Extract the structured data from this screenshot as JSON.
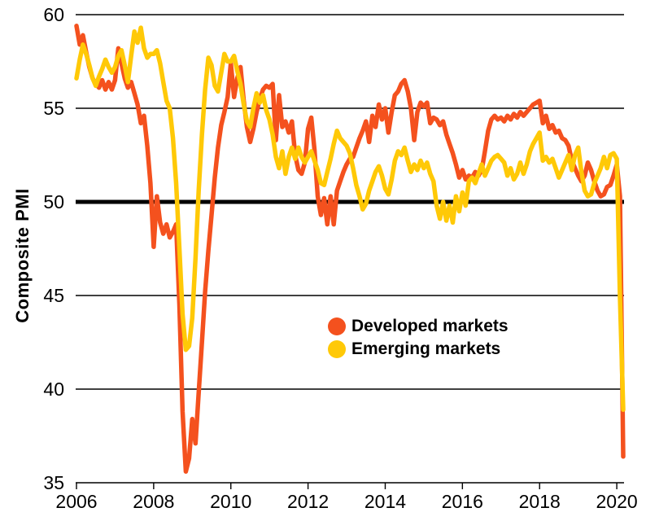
{
  "chart_data": {
    "type": "line",
    "title": "",
    "ylabel": "Composite PMI",
    "x_unit": "month",
    "x_start": "2006-01",
    "x_end": "2020-03",
    "x_range": [
      2006.0,
      2020.1667
    ],
    "y_range": [
      35,
      60
    ],
    "grid": "horizontal",
    "reference_line": 50,
    "legend_position": "center-right, inside plot",
    "x_axis": {
      "ticks": [
        {
          "value": 2006,
          "label": "2006"
        },
        {
          "value": 2008,
          "label": "2008"
        },
        {
          "value": 2010,
          "label": "2010"
        },
        {
          "value": 2012,
          "label": "2012"
        },
        {
          "value": 2014,
          "label": "2014"
        },
        {
          "value": 2016,
          "label": "2016"
        },
        {
          "value": 2018,
          "label": "2018"
        },
        {
          "value": 2020,
          "label": "2020"
        }
      ]
    },
    "y_axis": {
      "ticks": [
        {
          "value": 60,
          "label": "60",
          "emphasis": false
        },
        {
          "value": 55,
          "label": "55",
          "emphasis": false
        },
        {
          "value": 50,
          "label": "50",
          "emphasis": true
        },
        {
          "value": 45,
          "label": "45",
          "emphasis": false
        },
        {
          "value": 40,
          "label": "40",
          "emphasis": false
        },
        {
          "value": 35,
          "label": "35",
          "emphasis": false
        }
      ]
    },
    "series": [
      {
        "id": "developed",
        "name": "Developed markets",
        "color": "#F4511E",
        "start": "2006-01",
        "values": [
          59.4,
          58.4,
          58.9,
          58.0,
          57.2,
          56.6,
          56.3,
          56.1,
          56.5,
          56.0,
          56.4,
          56.0,
          56.5,
          58.2,
          57.4,
          56.6,
          56.1,
          56.4,
          55.8,
          55.2,
          54.2,
          54.6,
          53.0,
          51.0,
          47.6,
          50.3,
          48.9,
          48.3,
          48.8,
          48.1,
          48.4,
          48.8,
          44.5,
          38.8,
          35.6,
          36.3,
          38.4,
          37.1,
          39.8,
          42.5,
          45.2,
          47.4,
          49.3,
          51.3,
          52.9,
          54.1,
          54.8,
          55.6,
          57.4,
          55.6,
          56.6,
          57.2,
          55.4,
          54.0,
          53.2,
          53.9,
          54.8,
          55.5,
          56.0,
          56.2,
          56.1,
          56.3,
          53.3,
          55.7,
          54.0,
          54.3,
          53.7,
          54.3,
          52.5,
          51.7,
          51.5,
          52.1,
          53.9,
          54.5,
          52.8,
          50.3,
          49.3,
          50.2,
          48.8,
          50.3,
          48.8,
          50.6,
          51.1,
          51.6,
          52.0,
          52.3,
          52.4,
          52.9,
          53.4,
          53.8,
          54.3,
          53.2,
          54.6,
          54.0,
          55.2,
          54.4,
          55.0,
          53.7,
          54.8,
          55.7,
          55.9,
          56.3,
          56.5,
          55.9,
          55.0,
          53.3,
          54.8,
          55.3,
          55.1,
          55.3,
          54.2,
          54.5,
          54.4,
          54.1,
          54.3,
          53.6,
          53.1,
          52.6,
          52.0,
          51.3,
          51.7,
          51.2,
          51.4,
          51.3,
          51.6,
          51.4,
          51.7,
          52.7,
          53.8,
          54.4,
          54.6,
          54.4,
          54.5,
          54.3,
          54.6,
          54.4,
          54.7,
          54.5,
          54.8,
          54.6,
          54.8,
          55.0,
          55.2,
          55.3,
          55.4,
          54.2,
          54.6,
          53.9,
          54.1,
          53.7,
          53.8,
          53.4,
          53.3,
          53.0,
          52.2,
          51.8,
          51.4,
          51.1,
          51.4,
          52.1,
          51.7,
          51.1,
          50.6,
          50.3,
          50.4,
          50.8,
          50.9,
          51.4,
          52.0,
          50.3,
          36.4
        ]
      },
      {
        "id": "emerging",
        "name": "Emerging markets",
        "color": "#FFC907",
        "start": "2006-01",
        "values": [
          56.6,
          57.6,
          58.4,
          57.9,
          57.3,
          56.6,
          56.2,
          56.7,
          57.1,
          57.6,
          57.2,
          56.9,
          57.2,
          57.8,
          58.1,
          57.3,
          56.4,
          57.8,
          59.1,
          58.5,
          59.3,
          58.2,
          57.7,
          57.9,
          57.9,
          58.1,
          57.4,
          56.4,
          55.4,
          55.0,
          53.4,
          51.0,
          47.5,
          44.0,
          42.1,
          42.3,
          43.8,
          47.0,
          50.6,
          53.6,
          56.0,
          57.7,
          57.3,
          56.2,
          55.9,
          56.9,
          57.9,
          57.5,
          57.5,
          57.8,
          57.0,
          56.3,
          55.2,
          54.3,
          54.0,
          55.0,
          55.8,
          55.3,
          55.7,
          54.9,
          54.4,
          53.6,
          52.4,
          51.8,
          52.7,
          51.5,
          52.4,
          52.9,
          52.3,
          52.9,
          52.4,
          52.1,
          52.4,
          52.7,
          52.2,
          51.7,
          51.0,
          50.9,
          51.6,
          52.3,
          53.1,
          53.8,
          53.4,
          53.2,
          53.0,
          52.6,
          51.8,
          50.9,
          50.3,
          49.6,
          49.9,
          50.6,
          51.1,
          51.6,
          51.9,
          51.4,
          50.7,
          50.4,
          51.2,
          52.2,
          52.7,
          52.5,
          52.9,
          52.2,
          51.6,
          52.0,
          51.7,
          52.2,
          51.8,
          52.1,
          51.5,
          51.1,
          49.8,
          49.1,
          50.0,
          49.0,
          49.8,
          48.9,
          50.3,
          49.5,
          50.5,
          49.8,
          51.1,
          51.3,
          51.0,
          51.5,
          52.0,
          51.4,
          51.8,
          52.2,
          52.4,
          52.5,
          52.3,
          52.1,
          51.4,
          51.8,
          51.2,
          51.5,
          52.1,
          51.5,
          52.0,
          52.7,
          53.1,
          53.4,
          53.7,
          52.2,
          52.4,
          52.1,
          52.3,
          51.8,
          51.3,
          51.7,
          52.1,
          52.5,
          51.7,
          52.5,
          52.9,
          51.6,
          50.6,
          50.3,
          50.4,
          51.0,
          51.4,
          51.8,
          52.4,
          51.8,
          52.5,
          52.6,
          52.3,
          44.9,
          38.9
        ]
      }
    ]
  }
}
